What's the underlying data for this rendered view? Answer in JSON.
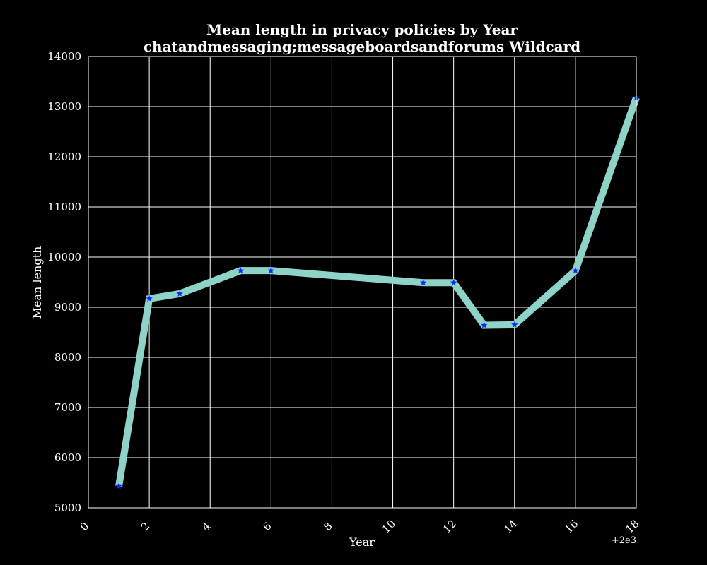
{
  "chart_data": {
    "type": "line",
    "title": "Mean length in privacy policies by Year",
    "subtitle": "chatandmessaging;messageboardsandforums Wildcard",
    "xlabel": "Year",
    "ylabel": "Mean length",
    "x_offset_label": "+2e3",
    "xlim": [
      0,
      18
    ],
    "ylim": [
      5000,
      14000
    ],
    "x_ticks": [
      0,
      2,
      4,
      6,
      8,
      10,
      12,
      14,
      16,
      18
    ],
    "y_ticks": [
      5000,
      6000,
      7000,
      8000,
      9000,
      10000,
      11000,
      12000,
      13000,
      14000
    ],
    "grid": true,
    "background": "#000000",
    "grid_color": "#ffffff",
    "line_color": "#8ed3c7",
    "marker_color": "#0a28ff",
    "marker": "star",
    "series": [
      {
        "x": [
          1,
          2,
          3,
          5,
          6,
          11,
          12,
          13,
          14,
          16,
          18
        ],
        "values": [
          5430,
          9170,
          9270,
          9730,
          9730,
          9490,
          9490,
          8640,
          8650,
          9730,
          13180
        ]
      }
    ]
  }
}
